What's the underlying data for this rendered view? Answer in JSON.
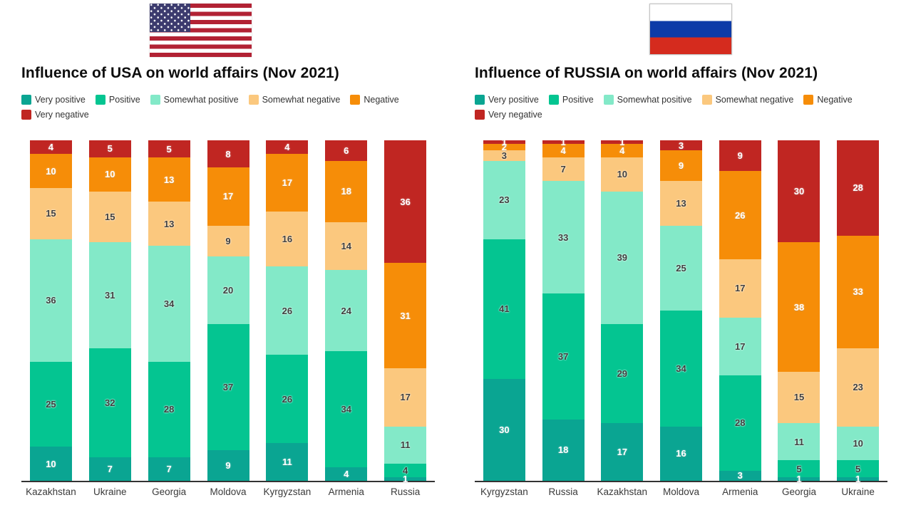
{
  "page": {
    "background": "#ffffff"
  },
  "flags": {
    "usa": {
      "icon": "usa-flag-icon",
      "stripe_red": "#b22234",
      "stripe_white": "#ffffff",
      "canton_blue": "#3c3b6e",
      "stars": "#ffffff"
    },
    "russia": {
      "icon": "russia-flag-icon",
      "white": "#ffffff",
      "blue": "#0d3ba8",
      "red": "#d52b1e",
      "border": "#c2c2c2"
    }
  },
  "chart_data": [
    {
      "type": "bar",
      "stacked": true,
      "units": "%",
      "title": "Influence of USA on world affairs (Nov 2021)",
      "xlabel": "",
      "ylabel": "",
      "ylim": [
        0,
        100
      ],
      "grid": false,
      "legend_position": "top-left",
      "categories": [
        "Kazakhstan",
        "Ukraine",
        "Georgia",
        "Moldova",
        "Kyrgyzstan",
        "Armenia",
        "Russia"
      ],
      "series": [
        {
          "name": "Very positive",
          "color": "#0aa592",
          "label_color": "#ffffff",
          "values": [
            10,
            7,
            7,
            9,
            11,
            4,
            1
          ]
        },
        {
          "name": "Positive",
          "color": "#04c591",
          "label_color": "#3f3f3f",
          "values": [
            25,
            32,
            28,
            37,
            26,
            34,
            4
          ]
        },
        {
          "name": "Somewhat positive",
          "color": "#83e9c8",
          "label_color": "#3f3f3f",
          "values": [
            36,
            31,
            34,
            20,
            26,
            24,
            11
          ]
        },
        {
          "name": "Somewhat negative",
          "color": "#fbc87e",
          "label_color": "#3f3f3f",
          "values": [
            15,
            15,
            13,
            9,
            16,
            14,
            17
          ]
        },
        {
          "name": "Negative",
          "color": "#f68d08",
          "label_color": "#ffffff",
          "values": [
            10,
            10,
            13,
            17,
            17,
            18,
            31
          ]
        },
        {
          "name": "Very negative",
          "color": "#c02622",
          "label_color": "#ffffff",
          "values": [
            4,
            5,
            5,
            8,
            4,
            6,
            36
          ]
        }
      ]
    },
    {
      "type": "bar",
      "stacked": true,
      "units": "%",
      "title": "Influence of RUSSIA on world affairs (Nov 2021)",
      "xlabel": "",
      "ylabel": "",
      "ylim": [
        0,
        100
      ],
      "grid": false,
      "legend_position": "top-left",
      "categories": [
        "Kyrgyzstan",
        "Russia",
        "Kazakhstan",
        "Moldova",
        "Armenia",
        "Georgia",
        "Ukraine"
      ],
      "series": [
        {
          "name": "Very positive",
          "color": "#0aa592",
          "label_color": "#ffffff",
          "values": [
            30,
            18,
            17,
            16,
            3,
            1,
            1
          ]
        },
        {
          "name": "Positive",
          "color": "#04c591",
          "label_color": "#3f3f3f",
          "values": [
            41,
            37,
            29,
            34,
            28,
            5,
            5
          ]
        },
        {
          "name": "Somewhat positive",
          "color": "#83e9c8",
          "label_color": "#3f3f3f",
          "values": [
            23,
            33,
            39,
            25,
            17,
            11,
            10
          ]
        },
        {
          "name": "Somewhat negative",
          "color": "#fbc87e",
          "label_color": "#3f3f3f",
          "values": [
            3,
            7,
            10,
            13,
            17,
            15,
            23
          ]
        },
        {
          "name": "Negative",
          "color": "#f68d08",
          "label_color": "#ffffff",
          "values": [
            2,
            4,
            4,
            9,
            26,
            38,
            33
          ]
        },
        {
          "name": "Very negative",
          "color": "#c02622",
          "label_color": "#ffffff",
          "values": [
            1,
            1,
            1,
            3,
            9,
            30,
            28
          ]
        }
      ]
    }
  ]
}
